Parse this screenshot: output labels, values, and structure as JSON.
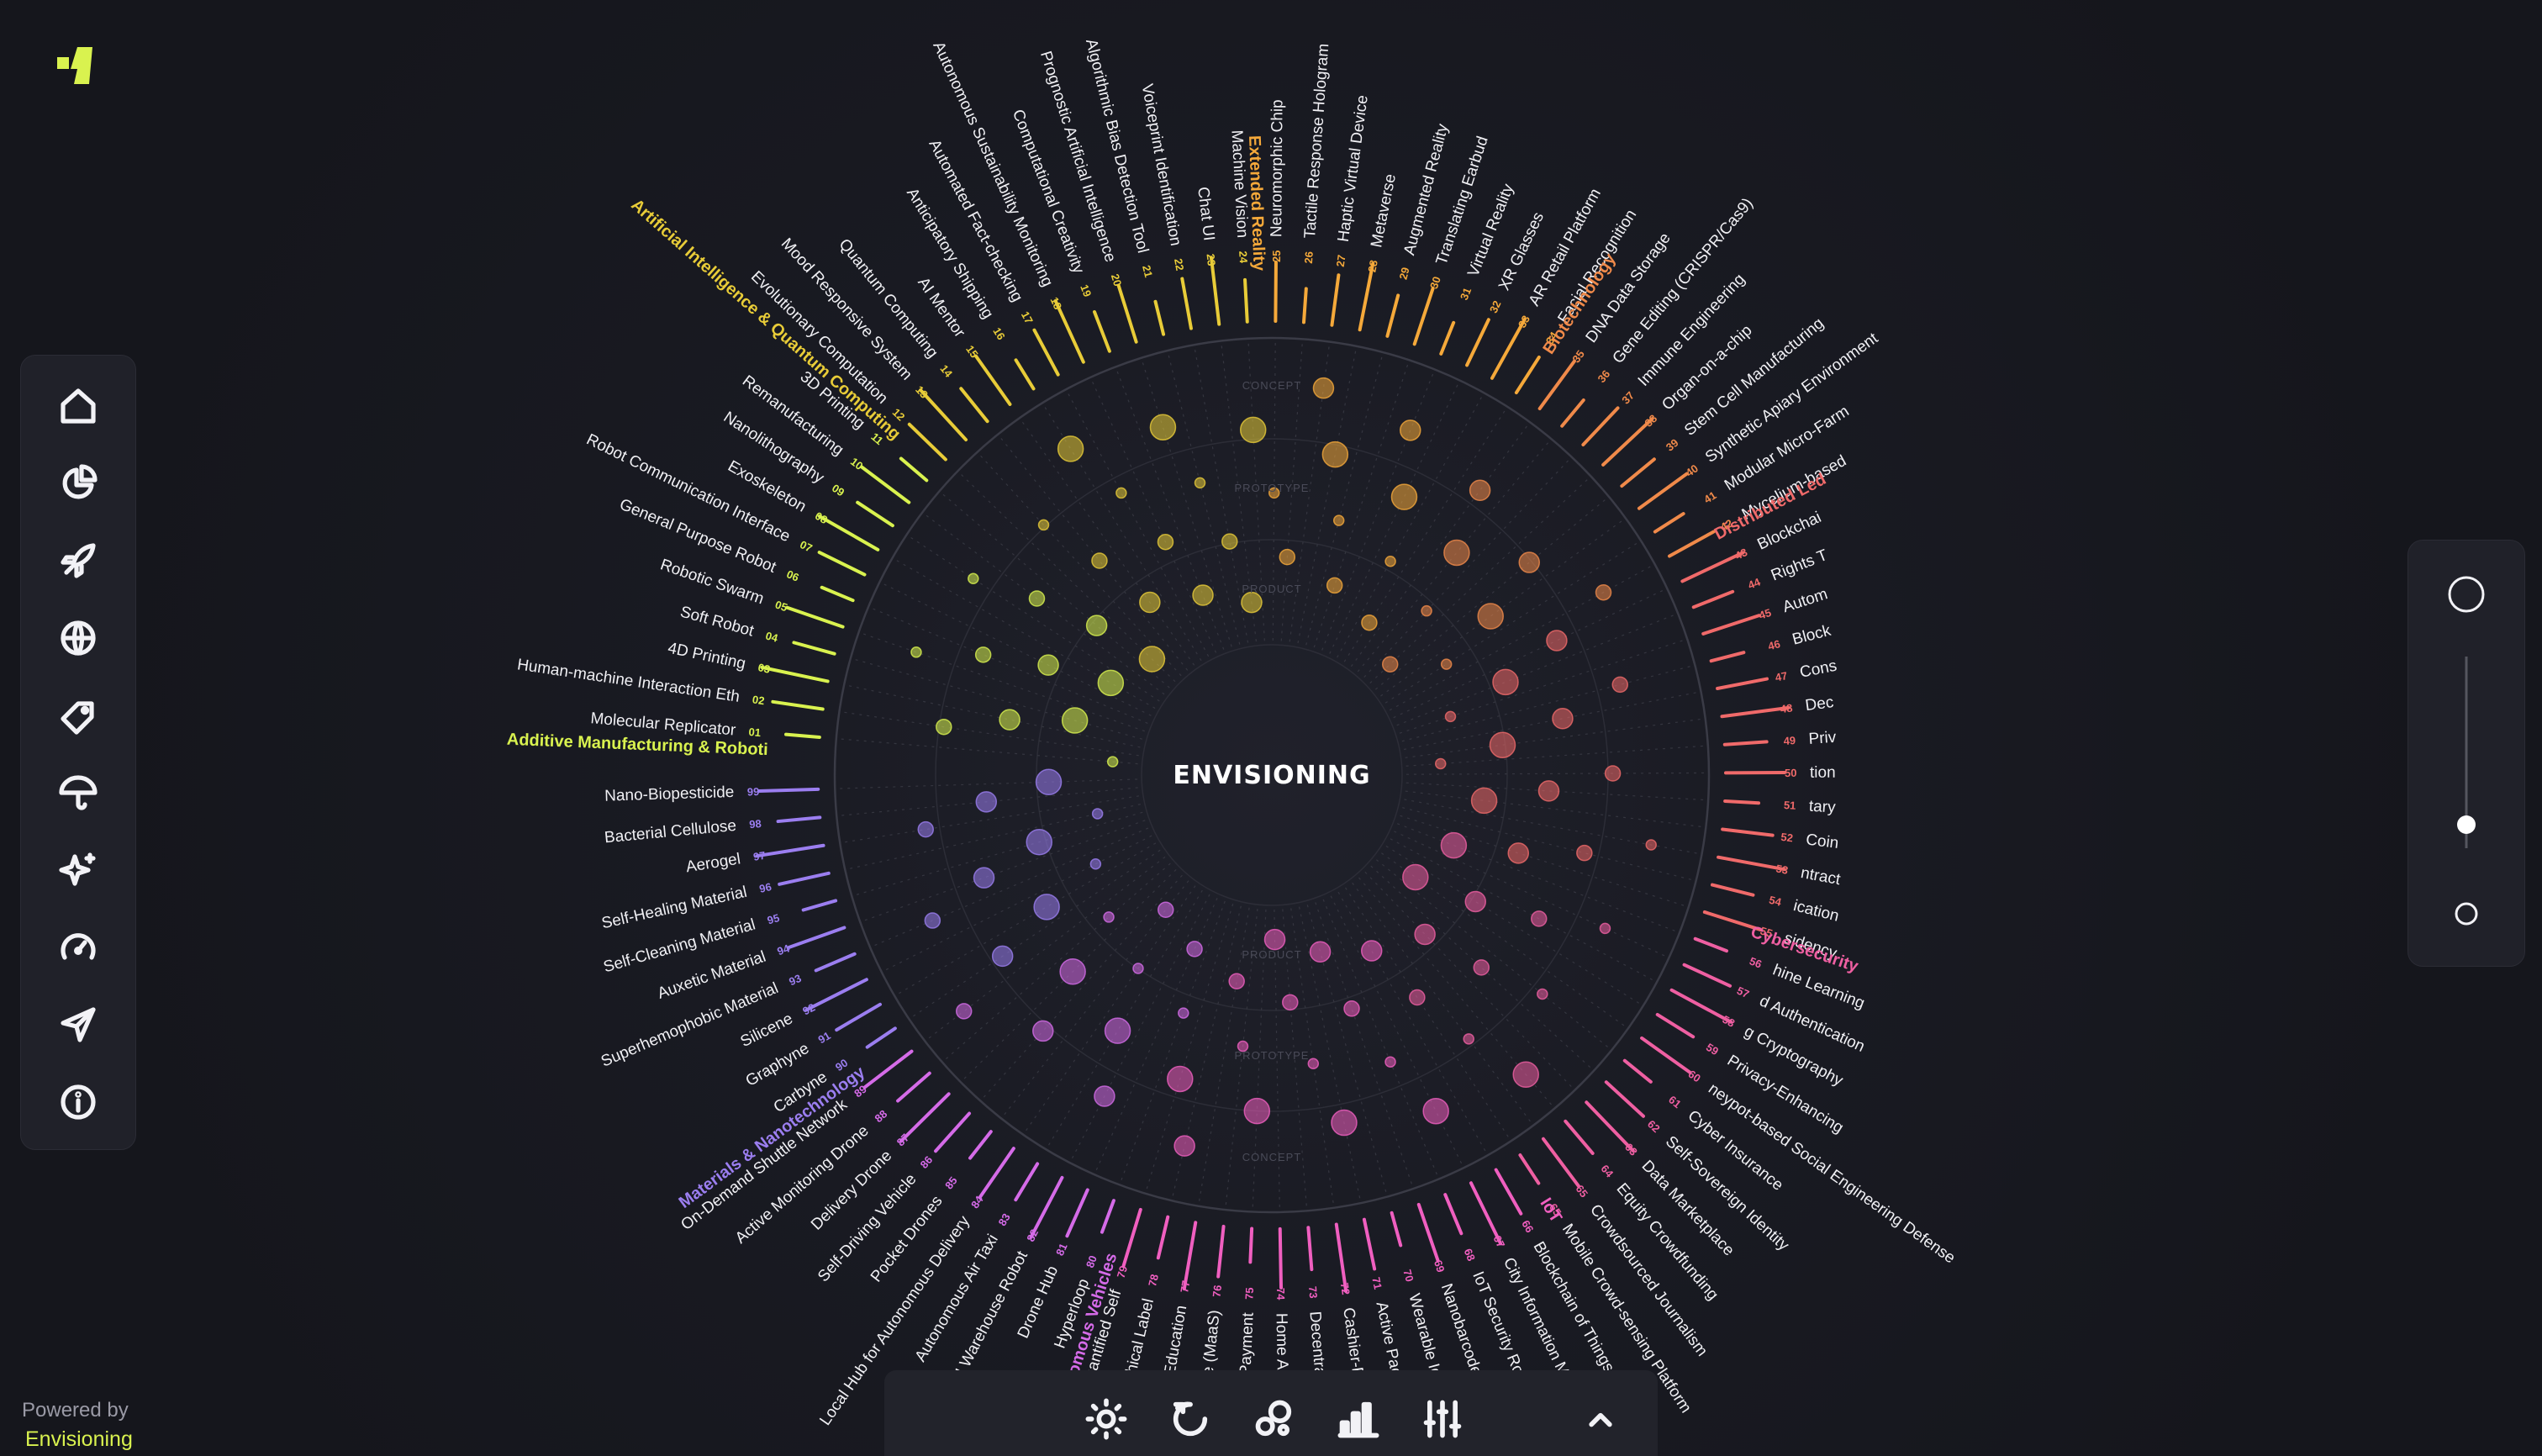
{
  "app": {
    "center_title": "ENVISIONING",
    "powered_by": "Powered by",
    "brand": "Envisioning",
    "accent": "#d9f24f"
  },
  "sidebar": {
    "items": [
      {
        "icon": "home-icon"
      },
      {
        "icon": "pie-chart-icon"
      },
      {
        "icon": "rocket-icon"
      },
      {
        "icon": "globe-icon"
      },
      {
        "icon": "tag-icon"
      },
      {
        "icon": "umbrella-icon"
      },
      {
        "icon": "sparkles-icon"
      },
      {
        "icon": "gauge-icon"
      },
      {
        "icon": "send-icon"
      },
      {
        "icon": "info-icon"
      }
    ]
  },
  "toolbar": {
    "items": [
      {
        "icon": "sun-icon"
      },
      {
        "icon": "refresh-icon"
      },
      {
        "icon": "bubbles-icon"
      },
      {
        "icon": "bar-chart-icon"
      },
      {
        "icon": "sliders-icon"
      },
      {
        "icon": "chevron-up-icon"
      }
    ]
  },
  "zoom": {
    "level": 0.5
  },
  "rings": {
    "top": [
      "CONCEPT",
      "PROTOTYPE",
      "PRODUCT"
    ],
    "bottom": [
      "PRODUCT",
      "PROTOTYPE",
      "CONCEPT"
    ]
  },
  "categories": [
    {
      "name": "Additive Manufacturing & Roboti",
      "color": "#d9f24f"
    },
    {
      "name": "Artificial Intelligence & Quantum Computing",
      "color": "#e8cc38"
    },
    {
      "name": "Extended Reality",
      "color": "#f5a93a"
    },
    {
      "name": "Biotechnology",
      "color": "#f08a4a"
    },
    {
      "name": "Distributed Led",
      "color": "#f06a6a"
    },
    {
      "name": "Cybersecurity",
      "color": "#ef5fa2"
    },
    {
      "name": "IoT",
      "color": "#f05fc0"
    },
    {
      "name": "Autonomous Vehicles",
      "color": "#d56be8"
    },
    {
      "name": "Materials & Nanotechnology",
      "color": "#9b7ef0"
    }
  ],
  "technologies": [
    {
      "n": "01",
      "name": "Molecular Replicator",
      "cat": 0
    },
    {
      "n": "02",
      "name": "Human-machine Interaction Eth",
      "cat": 0
    },
    {
      "n": "03",
      "name": "4D Printing",
      "cat": 0
    },
    {
      "n": "04",
      "name": "Soft Robot",
      "cat": 0
    },
    {
      "n": "05",
      "name": "Robotic Swarm",
      "cat": 0
    },
    {
      "n": "06",
      "name": "General Purpose Robot",
      "cat": 0
    },
    {
      "n": "07",
      "name": "Robot Communication Interface",
      "cat": 0
    },
    {
      "n": "08",
      "name": "Exoskeleton",
      "cat": 0
    },
    {
      "n": "09",
      "name": "Nanolithography",
      "cat": 0
    },
    {
      "n": "10",
      "name": "Remanufacturing",
      "cat": 0
    },
    {
      "n": "11",
      "name": "3D Printing",
      "cat": 0
    },
    {
      "n": "12",
      "name": "Evolutionary Computation",
      "cat": 1
    },
    {
      "n": "13",
      "name": "Mood Responsive System",
      "cat": 1
    },
    {
      "n": "14",
      "name": "Quantum Computing",
      "cat": 1
    },
    {
      "n": "15",
      "name": "AI Mentor",
      "cat": 1
    },
    {
      "n": "16",
      "name": "Anticipatory Shipping",
      "cat": 1
    },
    {
      "n": "17",
      "name": "Automated Fact-checking",
      "cat": 1
    },
    {
      "n": "18",
      "name": "Autonomous Sustainability Monitoring",
      "cat": 1
    },
    {
      "n": "19",
      "name": "Computational Creativity",
      "cat": 1
    },
    {
      "n": "20",
      "name": "Prognostic Artificial Intelligence",
      "cat": 1
    },
    {
      "n": "21",
      "name": "Algorithmic Bias Detection Tool",
      "cat": 1
    },
    {
      "n": "22",
      "name": "Voiceprint Identification",
      "cat": 1
    },
    {
      "n": "23",
      "name": "Chat UI",
      "cat": 1
    },
    {
      "n": "24",
      "name": "Machine Vision",
      "cat": 1
    },
    {
      "n": "25",
      "name": "Neuromorphic Chip",
      "cat": 2
    },
    {
      "n": "26",
      "name": "Tactile Response Hologram",
      "cat": 2
    },
    {
      "n": "27",
      "name": "Haptic Virtual Device",
      "cat": 2
    },
    {
      "n": "28",
      "name": "Metaverse",
      "cat": 2
    },
    {
      "n": "29",
      "name": "Augmented Reality",
      "cat": 2
    },
    {
      "n": "30",
      "name": "Translating Earbud",
      "cat": 2
    },
    {
      "n": "31",
      "name": "Virtual Reality",
      "cat": 2
    },
    {
      "n": "32",
      "name": "XR Glasses",
      "cat": 2
    },
    {
      "n": "33",
      "name": "AR Retail Platform",
      "cat": 2
    },
    {
      "n": "34",
      "name": "Facial Recognition",
      "cat": 2
    },
    {
      "n": "35",
      "name": "DNA Data Storage",
      "cat": 3
    },
    {
      "n": "36",
      "name": "Gene Editing (CRISPR/Cas9)",
      "cat": 3
    },
    {
      "n": "37",
      "name": "Immune Engineering",
      "cat": 3
    },
    {
      "n": "38",
      "name": "Organ-on-a-chip",
      "cat": 3
    },
    {
      "n": "39",
      "name": "Stem Cell Manufacturing",
      "cat": 3
    },
    {
      "n": "40",
      "name": "Synthetic Apiary Environment",
      "cat": 3
    },
    {
      "n": "41",
      "name": "Modular Micro-Farm",
      "cat": 3
    },
    {
      "n": "42",
      "name": "Mycelium-based",
      "cat": 3
    },
    {
      "n": "43",
      "name": "Blockchai",
      "cat": 4
    },
    {
      "n": "44",
      "name": "Rights T",
      "cat": 4
    },
    {
      "n": "45",
      "name": "Autom",
      "cat": 4
    },
    {
      "n": "46",
      "name": "Block",
      "cat": 4
    },
    {
      "n": "47",
      "name": "Cons",
      "cat": 4
    },
    {
      "n": "48",
      "name": "Dec",
      "cat": 4
    },
    {
      "n": "49",
      "name": "Priv",
      "cat": 4
    },
    {
      "n": "50",
      "name": "tion",
      "cat": 4
    },
    {
      "n": "51",
      "name": "tary",
      "cat": 4
    },
    {
      "n": "52",
      "name": "Coin",
      "cat": 4
    },
    {
      "n": "53",
      "name": "ntract",
      "cat": 4
    },
    {
      "n": "54",
      "name": "ication",
      "cat": 4
    },
    {
      "n": "55",
      "name": "sidency",
      "cat": 4
    },
    {
      "n": "56",
      "name": "hine Learning",
      "cat": 5
    },
    {
      "n": "57",
      "name": "d Authentication",
      "cat": 5
    },
    {
      "n": "58",
      "name": "g Cryptography",
      "cat": 5
    },
    {
      "n": "59",
      "name": "Privacy-Enhancing",
      "cat": 5
    },
    {
      "n": "60",
      "name": "neypot-based Social Engineering Defense",
      "cat": 5
    },
    {
      "n": "61",
      "name": "Cyber Insurance",
      "cat": 5
    },
    {
      "n": "62",
      "name": "Self-Sovereign Identity",
      "cat": 5
    },
    {
      "n": "63",
      "name": "Data Marketplace",
      "cat": 5
    },
    {
      "n": "64",
      "name": "Equity Crowdfunding",
      "cat": 5
    },
    {
      "n": "65",
      "name": "Crowdsourced Journalism",
      "cat": 5
    },
    {
      "n": "65",
      "name": "Mobile Crowd-sensing Platform",
      "cat": 5
    },
    {
      "n": "66",
      "name": "Blockchain of Things",
      "cat": 6
    },
    {
      "n": "67",
      "name": "City Information Modeling",
      "cat": 6
    },
    {
      "n": "68",
      "name": "IoT Security Router",
      "cat": 6
    },
    {
      "n": "69",
      "name": "Nanobarcode",
      "cat": 6
    },
    {
      "n": "70",
      "name": "Wearable Identity",
      "cat": 6
    },
    {
      "n": "71",
      "name": "Active Packaging",
      "cat": 6
    },
    {
      "n": "72",
      "name": "Cashier-Free Store",
      "cat": 6
    },
    {
      "n": "73",
      "name": "Decentralized Energy Grid",
      "cat": 6
    },
    {
      "n": "74",
      "name": "Home Automation System",
      "cat": 6
    },
    {
      "n": "75",
      "name": "In-Vehicle Payment",
      "cat": 6
    },
    {
      "n": "76",
      "name": "Mobility as a Service (MaaS)",
      "cat": 6
    },
    {
      "n": "77",
      "name": "Cloud Education",
      "cat": 6
    },
    {
      "n": "78",
      "name": "Eco-ethical Label",
      "cat": 6
    },
    {
      "n": "79",
      "name": "Quantified Self",
      "cat": 6
    },
    {
      "n": "80",
      "name": "Hyperloop",
      "cat": 7
    },
    {
      "n": "81",
      "name": "Drone Hub",
      "cat": 7
    },
    {
      "n": "82",
      "name": "AI Warehouse Robot",
      "cat": 7
    },
    {
      "n": "83",
      "name": "Autonomous Air Taxi",
      "cat": 7
    },
    {
      "n": "84",
      "name": "Local Hub for Autonomous Delivery",
      "cat": 7
    },
    {
      "n": "85",
      "name": "Pocket Drones",
      "cat": 7
    },
    {
      "n": "86",
      "name": "Self-Driving Vehicle",
      "cat": 7
    },
    {
      "n": "87",
      "name": "Delivery Drone",
      "cat": 7
    },
    {
      "n": "88",
      "name": "Active Monitoring Drone",
      "cat": 7
    },
    {
      "n": "89",
      "name": "On-Demand Shuttle Network",
      "cat": 7
    },
    {
      "n": "90",
      "name": "Carbyne",
      "cat": 8
    },
    {
      "n": "91",
      "name": "Graphyne",
      "cat": 8
    },
    {
      "n": "92",
      "name": "Silicene",
      "cat": 8
    },
    {
      "n": "93",
      "name": "Superhemophobic Material",
      "cat": 8
    },
    {
      "n": "94",
      "name": "Auxetic Material",
      "cat": 8
    },
    {
      "n": "95",
      "name": "Self-Cleaning Material",
      "cat": 8
    },
    {
      "n": "96",
      "name": "Self-Healing Material",
      "cat": 8
    },
    {
      "n": "97",
      "name": "Aerogel",
      "cat": 8
    },
    {
      "n": "98",
      "name": "Bacterial Cellulose",
      "cat": 8
    },
    {
      "n": "99",
      "name": "Nano-Biopesticide",
      "cat": 8
    }
  ]
}
